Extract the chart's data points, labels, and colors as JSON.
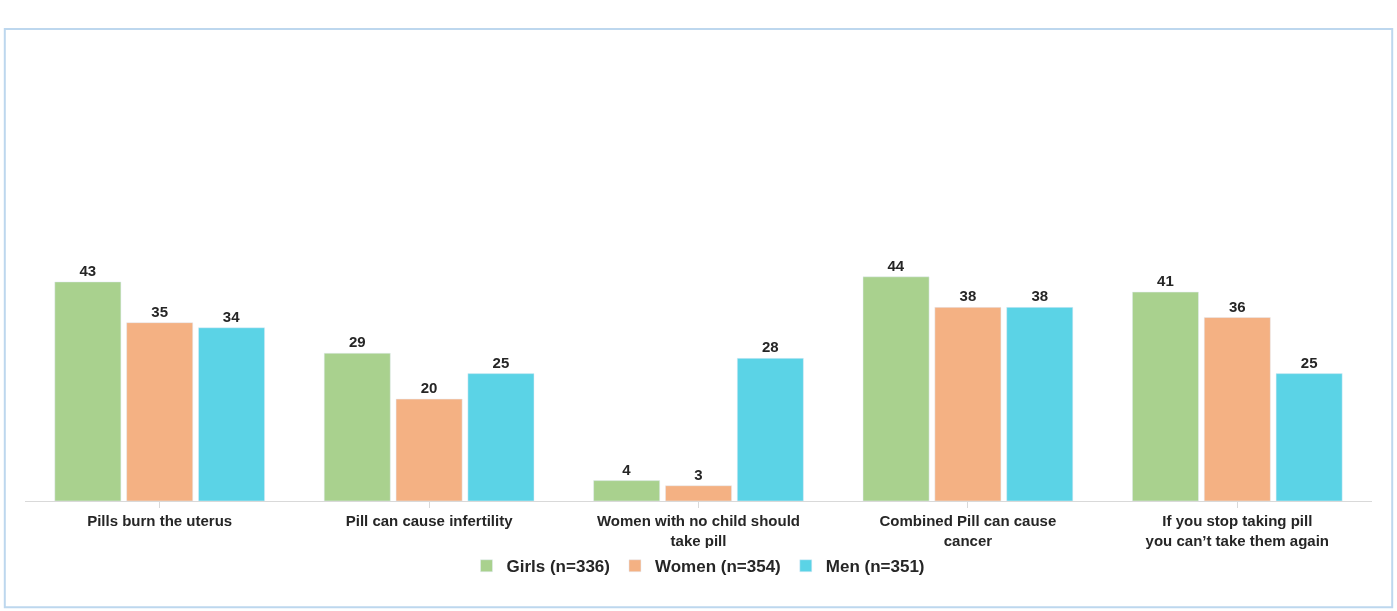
{
  "chart_data": {
    "type": "bar",
    "categories": [
      "Pills burn the uterus",
      "Pill can cause infertility",
      "Women with no child should take pill",
      "Combined Pill can cause cancer",
      "If you stop taking pill you can’t take them again"
    ],
    "series": [
      {
        "name": "Girls (n=336)",
        "color": "#a9d18e",
        "values": [
          43,
          29,
          4,
          44,
          41
        ]
      },
      {
        "name": "Women (n=354)",
        "color": "#f4b183",
        "values": [
          35,
          20,
          3,
          38,
          36
        ]
      },
      {
        "name": "Men (n=351)",
        "color": "#5bd3e6",
        "values": [
          34,
          25,
          28,
          38,
          25
        ]
      }
    ],
    "data_labels": true,
    "legend": "bottom"
  }
}
